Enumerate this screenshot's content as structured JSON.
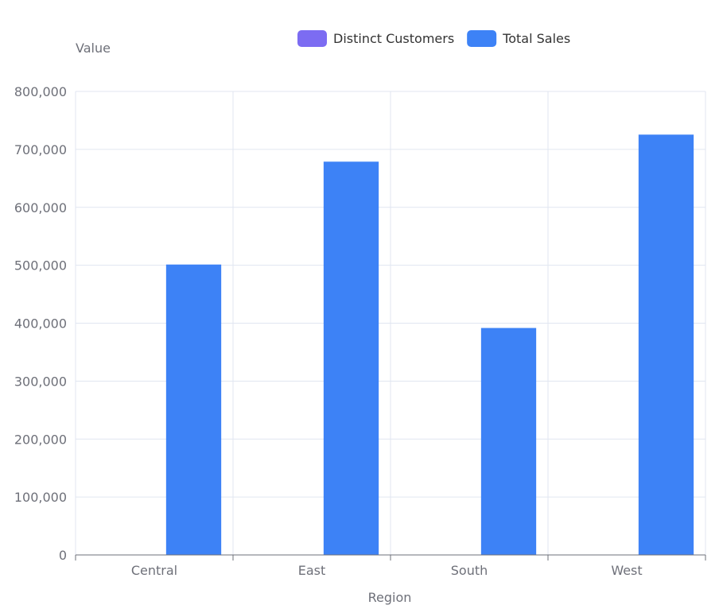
{
  "chart_data": {
    "type": "bar",
    "categories": [
      "Central",
      "East",
      "South",
      "West"
    ],
    "series": [
      {
        "name": "Distinct Customers",
        "values": [
          629,
          674,
          512,
          686
        ],
        "color": "#7c6cf2"
      },
      {
        "name": "Total Sales",
        "values": [
          501240,
          678781,
          391722,
          725458
        ],
        "color": "#3d82f6"
      }
    ],
    "xlabel": "Region",
    "ylabel": "Value",
    "ylim": [
      0,
      800000
    ],
    "yticks": [
      0,
      100000,
      200000,
      300000,
      400000,
      500000,
      600000,
      700000,
      800000
    ],
    "ytick_labels": [
      "0",
      "100,000",
      "200,000",
      "300,000",
      "400,000",
      "500,000",
      "600,000",
      "700,000",
      "800,000"
    ],
    "grid": true,
    "legend_position": "top-center"
  }
}
